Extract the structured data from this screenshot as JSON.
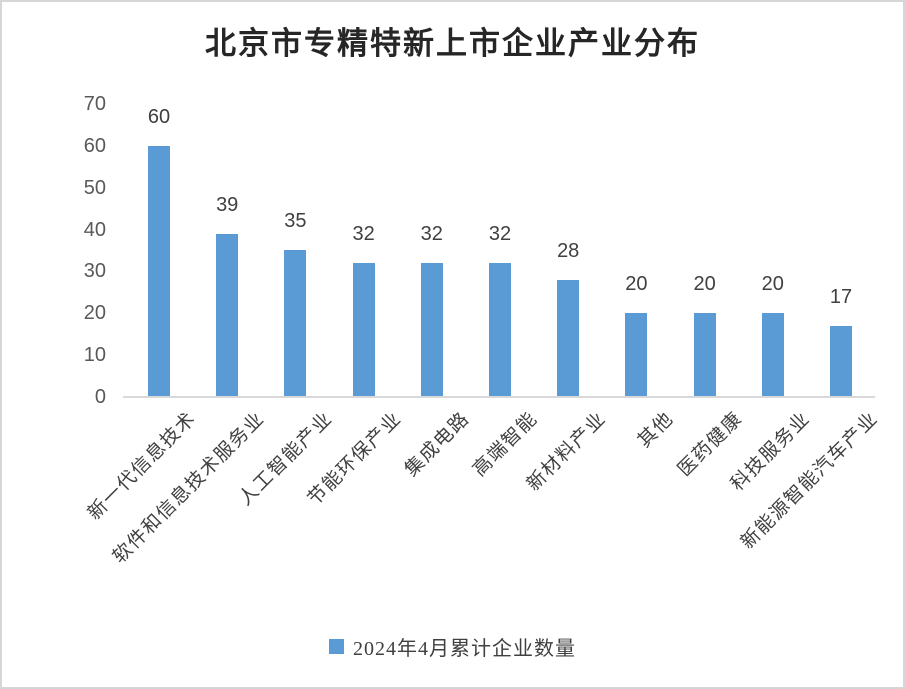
{
  "chart_data": {
    "type": "bar",
    "title": "北京市专精特新上市企业产业分布",
    "categories": [
      "新一代信息技术",
      "软件和信息技术服务业",
      "人工智能产业",
      "节能环保产业",
      "集成电路",
      "高端智能",
      "新材料产业",
      "其他",
      "医药健康",
      "科技服务业",
      "新能源智能汽车产业"
    ],
    "series": [
      {
        "name": "2024年4月累计企业数量",
        "values": [
          60,
          39,
          35,
          32,
          32,
          32,
          28,
          20,
          20,
          20,
          17
        ]
      }
    ],
    "xlabel": "",
    "ylabel": "",
    "ylim": [
      0,
      70
    ],
    "yticks": [
      0,
      10,
      20,
      30,
      40,
      50,
      60,
      70
    ],
    "grid": false,
    "data_labels": true,
    "legend_position": "bottom",
    "x_label_rotation_deg": 45
  },
  "colors": {
    "bar": "#5B9BD5",
    "axis_line": "#D9D9D9",
    "tick_label": "#595959",
    "data_label": "#404040",
    "category_label": "#404040",
    "title": "#262626",
    "border": "#D6D6D6"
  }
}
